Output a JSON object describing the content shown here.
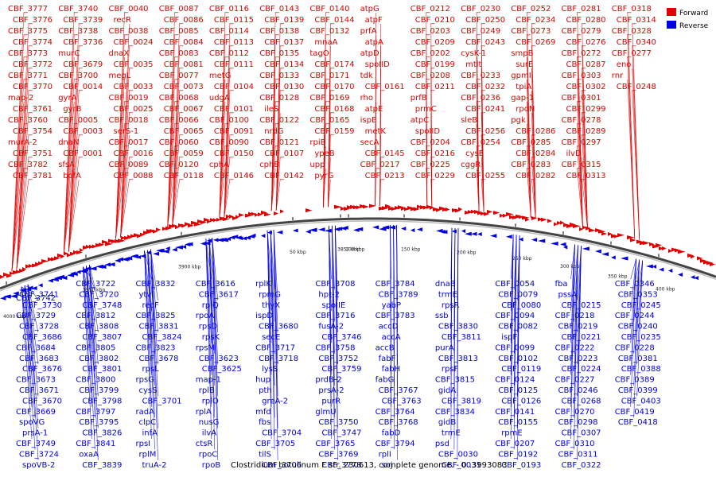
{
  "caption": "Clostridium botulinum F str. 230613, complete genome. - 0..3993083",
  "legend": [
    {
      "label": "Forward",
      "color": "#e00000"
    },
    {
      "label": "Reverse",
      "color": "#0000e0"
    }
  ],
  "colors": {
    "forward": "#e00000",
    "reverse": "#0000e0",
    "backbone": "#555555"
  },
  "ticks": [
    "4000 kbp",
    "3950 kbp",
    "3900 kbp",
    "3850 kbp",
    "50 kbp",
    "100 kbp",
    "150 kbp",
    "200 kbp",
    "250 kbp",
    "300 kbp",
    "350 kbp",
    "400 kbp"
  ],
  "forward_labels": [
    "CBF_3777",
    "CBF_3776",
    "CBF_3775",
    "CBF_3774",
    "CBF_3773",
    "CBF_3772",
    "CBF_3771",
    "CBF_3770",
    "map-2",
    "CBF_3761",
    "CBF_3760",
    "CBF_3754",
    "murA-2",
    "CBF_3751",
    "CBF_3782",
    "CBF_3781",
    "CBF_3740",
    "CBF_3739",
    "CBF_3738",
    "CBF_3736",
    "murC",
    "CBF_3679",
    "CBF_3700",
    "CBF_0014",
    "gyrA",
    "gyrB",
    "CBF_0005",
    "CBF_0003",
    "dnaN",
    "CBF_0001",
    "sfsA",
    "bofA",
    "CBF_0040",
    "recR",
    "CBF_0038",
    "CBF_0024",
    "dnaX",
    "CBF_0035",
    "megL",
    "CBF_0033",
    "CBF_0019",
    "CBF_0025",
    "CBF_0018",
    "serS-1",
    "CBF_0017",
    "CBF_0016",
    "CBF_0089",
    "CBF_0088",
    "CBF_0087",
    "CBF_0086",
    "CBF_0085",
    "CBF_0084",
    "CBF_0083",
    "CBF_0081",
    "CBF_0077",
    "CBF_0073",
    "CBF_0068",
    "CBF_0067",
    "CBF_0066",
    "CBF_0065",
    "CBF_0060",
    "CBF_0059",
    "CBF_0120",
    "CBF_0118",
    "CBF_0116",
    "CBF_0115",
    "CBF_0114",
    "CBF_0113",
    "CBF_0112",
    "CBF_0111",
    "metG",
    "CBF_0104",
    "udgA",
    "CBF_0101",
    "CBF_0100",
    "CBF_0091",
    "CBF_0090",
    "CBF_0150",
    "cphA",
    "CBF_0146",
    "CBF_0143",
    "CBF_0139",
    "CBF_0138",
    "CBF_0137",
    "CBF_0135",
    "CBF_0134",
    "CBF_0133",
    "CBF_0130",
    "CBF_0128",
    "ileS",
    "CBF_0122",
    "nrdG",
    "CBF_0121",
    "CBF_0107",
    "cphB",
    "CBF_0142",
    "CBF_0140",
    "CBF_0144",
    "CBF_0132",
    "mnaA",
    "tagO",
    "CBF_0174",
    "CBF_0171",
    "CBF_0170",
    "CBF_0169",
    "CBF_0168",
    "CBF_0165",
    "CBF_0159",
    "rpiB",
    "ypeB",
    "upp",
    "pyrG",
    "atpG",
    "atpF",
    "prfA",
    "atpA",
    "atpD",
    "spoIID",
    "tdk",
    "CBF_0161",
    "rho",
    "atpE",
    "ispE",
    "metK",
    "secA",
    "CBF_0145",
    "CBF_0217",
    "CBF_0213",
    "CBF_0212",
    "CBF_0210",
    "CBF_0203",
    "CBF_0209",
    "CBF_0202",
    "CBF_0199",
    "CBF_0208",
    "CBF_0211",
    "prfB",
    "prmC",
    "atpC",
    "spoIID",
    "CBF_0204",
    "CBF_0216",
    "CBF_0225",
    "CBF_0229",
    "CBF_0230",
    "CBF_0250",
    "CBF_0249",
    "CBF_0243",
    "cysK-1",
    "mtlt",
    "CBF_0233",
    "CBF_0232",
    "CBF_0236",
    "CBF_0241",
    "sleB",
    "CBF_0256",
    "CBF_0254",
    "cysE",
    "cggR",
    "CBF_0255",
    "CBF_0252",
    "CBF_0234",
    "CBF_0273",
    "CBF_0269",
    "smpB",
    "surE",
    "gpmI",
    "tpiA",
    "gap-1",
    "rpoN",
    "pgk",
    "CBF_0286",
    "CBF_0285",
    "CBF_0284",
    "CBF_0283",
    "CBF_0282",
    "CBF_0281",
    "CBF_0280",
    "CBF_0279",
    "CBF_0276",
    "CBF_0272",
    "CBF_0287",
    "CBF_0303",
    "CBF_0302",
    "CBF_0301",
    "CBF_0299",
    "CBF_0278",
    "CBF_0289",
    "CBF_0297",
    "ilvD",
    "CBF_0315",
    "CBF_0313",
    "CBF_0318",
    "CBF_0314",
    "CBF_0328",
    "CBF_0340",
    "CBF_0277",
    "eno",
    "rnr",
    "CBF_0248"
  ],
  "reverse_labels": [
    "CBF_3742",
    "CBF_3741",
    "CBF_3730",
    "CBF_3729",
    "CBF_3728",
    "CBF_3686",
    "CBF_3684",
    "CBF_3683",
    "CBF_3676",
    "CBF_3673",
    "CBF_3671",
    "CBF_3670",
    "CBF_3669",
    "spoVG",
    "prsA-1",
    "CBF_3749",
    "CBF_3724",
    "spoVB-2",
    "CBF_3722",
    "CBF_3720",
    "CBF_3748",
    "CBF_3812",
    "CBF_3808",
    "CBF_3807",
    "CBF_3805",
    "CBF_3802",
    "CBF_3801",
    "CBF_3800",
    "CBF_3799",
    "CBF_3798",
    "CBF_3797",
    "CBF_3795",
    "CBF_3826",
    "CBF_3841",
    "oxaA",
    "CBF_3839",
    "CBF_3832",
    "ytvI",
    "recF",
    "CBF_3825",
    "CBF_3831",
    "CBF_3824",
    "CBF_3823",
    "CBF_3678",
    "rpsL",
    "rpsG",
    "cysS",
    "CBF_3701",
    "radA",
    "clpC",
    "infA",
    "rpsI",
    "rplM",
    "truA-2",
    "CBF_3616",
    "CBF_3617",
    "rplQ",
    "rpoA",
    "rpsD",
    "rpsK",
    "rpsM",
    "CBF_3623",
    "CBF_3625",
    "map-1",
    "rplB",
    "rplO",
    "rplA",
    "nusG",
    "ilvA",
    "ctsR",
    "rpoC",
    "rpoB",
    "rplK",
    "rpmG",
    "thyX",
    "ispD",
    "CBF_3680",
    "secE",
    "CBF_3717",
    "CBF_3718",
    "lysS",
    "hup",
    "pth",
    "greA-2",
    "mfd",
    "fbs",
    "CBF_3704",
    "CBF_3705",
    "tilS",
    "CBF_3706",
    "CBF_3708",
    "hpt-2",
    "spoIIE",
    "CBF_3716",
    "fusA-2",
    "CBF_3746",
    "CBF_3758",
    "CBF_3752",
    "CBF_3759",
    "prdB-2",
    "prsA-2",
    "purR",
    "glmU",
    "CBF_3750",
    "CBF_3747",
    "CBF_3765",
    "CBF_3769",
    "CBF_3778",
    "CBF_3784",
    "CBF_3789",
    "yabP",
    "CBF_3783",
    "accD",
    "accA",
    "accB",
    "fabF",
    "fabH",
    "fabG",
    "CBF_3767",
    "CBF_3763",
    "CBF_3764",
    "CBF_3768",
    "fabD",
    "CBF_3794",
    "rplI",
    "soj",
    "dnaB",
    "trmE",
    "rpsR",
    "ssb",
    "CBF_3830",
    "CBF_3811",
    "purA",
    "CBF_3813",
    "rpsF",
    "CBF_3815",
    "gidA",
    "CBF_3819",
    "CBF_3834",
    "gidB",
    "trmE",
    "psd",
    "CBF_0030",
    "CBF_0031",
    "CBF_0054",
    "CBF_0079",
    "CBF_0080",
    "CBF_0094",
    "CBF_0082",
    "ispF",
    "CBF_0099",
    "CBF_0102",
    "CBF_0119",
    "CBF_0124",
    "CBF_0125",
    "CBF_0126",
    "CBF_0141",
    "CBF_0155",
    "rpmE",
    "CBF_0207",
    "CBF_0192",
    "CBF_0193",
    "fba",
    "pssA",
    "CBF_0215",
    "CBF_0218",
    "CBF_0219",
    "CBF_0221",
    "CBF_0222",
    "CBF_0223",
    "CBF_0224",
    "CBF_0227",
    "CBF_0246",
    "CBF_0268",
    "CBF_0270",
    "CBF_0298",
    "CBF_0307",
    "CBF_0310",
    "CBF_0311",
    "CBF_0322",
    "CBF_0346",
    "CBF_0353",
    "CBF_0245",
    "CBF_0244",
    "CBF_0240",
    "CBF_0235",
    "CBF_0228",
    "CBF_0381",
    "CBF_0388",
    "CBF_0389",
    "CBF_0399",
    "CBF_0403",
    "CBF_0419",
    "CBF_0418"
  ]
}
